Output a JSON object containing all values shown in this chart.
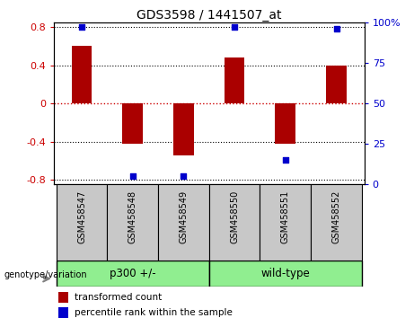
{
  "title": "GDS3598 / 1441507_at",
  "samples": [
    "GSM458547",
    "GSM458548",
    "GSM458549",
    "GSM458550",
    "GSM458551",
    "GSM458552"
  ],
  "bar_values": [
    0.6,
    -0.42,
    -0.55,
    0.48,
    -0.42,
    0.4
  ],
  "percentile_values": [
    97,
    5,
    5,
    97,
    15,
    96
  ],
  "ylim": [
    -0.85,
    0.85
  ],
  "right_ylim": [
    0,
    100
  ],
  "right_yticks": [
    0,
    25,
    50,
    75,
    100
  ],
  "right_yticklabels": [
    "0",
    "25",
    "50",
    "75",
    "100%"
  ],
  "left_yticks": [
    -0.8,
    -0.4,
    0,
    0.4,
    0.8
  ],
  "left_yticklabels": [
    "-0.8",
    "-0.4",
    "0",
    "0.4",
    "0.8"
  ],
  "bar_color": "#AA0000",
  "dot_color": "#0000CC",
  "zero_line_color": "#CC0000",
  "grid_color": "#000000",
  "group1_label": "p300 +/-",
  "group2_label": "wild-type",
  "group_color": "#90EE90",
  "sample_bg_color": "#C8C8C8",
  "genotype_label": "genotype/variation",
  "legend_red_label": "transformed count",
  "legend_blue_label": "percentile rank within the sample",
  "tick_label_color_left": "#CC0000",
  "tick_label_color_right": "#0000CC",
  "bar_width": 0.4
}
